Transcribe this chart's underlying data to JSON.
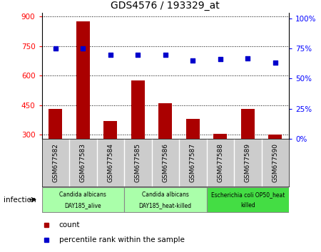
{
  "title": "GDS4576 / 193329_at",
  "samples": [
    "GSM677582",
    "GSM677583",
    "GSM677584",
    "GSM677585",
    "GSM677586",
    "GSM677587",
    "GSM677588",
    "GSM677589",
    "GSM677590"
  ],
  "counts": [
    430,
    875,
    370,
    575,
    460,
    380,
    305,
    430,
    300
  ],
  "percentile_ranks": [
    75,
    75,
    70,
    70,
    70,
    65,
    66,
    67,
    63
  ],
  "ylim_left": [
    280,
    920
  ],
  "ylim_right": [
    0,
    105
  ],
  "yticks_left": [
    300,
    450,
    600,
    750,
    900
  ],
  "yticks_right": [
    0,
    25,
    50,
    75,
    100
  ],
  "groups": [
    {
      "label": "Candida albicans\nDAY185_alive",
      "start": 0,
      "end": 3,
      "color": "#aaffaa"
    },
    {
      "label": "Candida albicans\nDAY185_heat-killed",
      "start": 3,
      "end": 6,
      "color": "#aaffaa"
    },
    {
      "label": "Escherichia coli OP50_heat\nkilled",
      "start": 6,
      "end": 9,
      "color": "#44dd44"
    }
  ],
  "bar_color": "#aa0000",
  "scatter_color": "#0000cc",
  "bar_width": 0.5,
  "bg_color": "#ffffff",
  "tick_area_color": "#cccccc",
  "infection_label": "infection",
  "legend_count": "count",
  "legend_pct": "percentile rank within the sample"
}
